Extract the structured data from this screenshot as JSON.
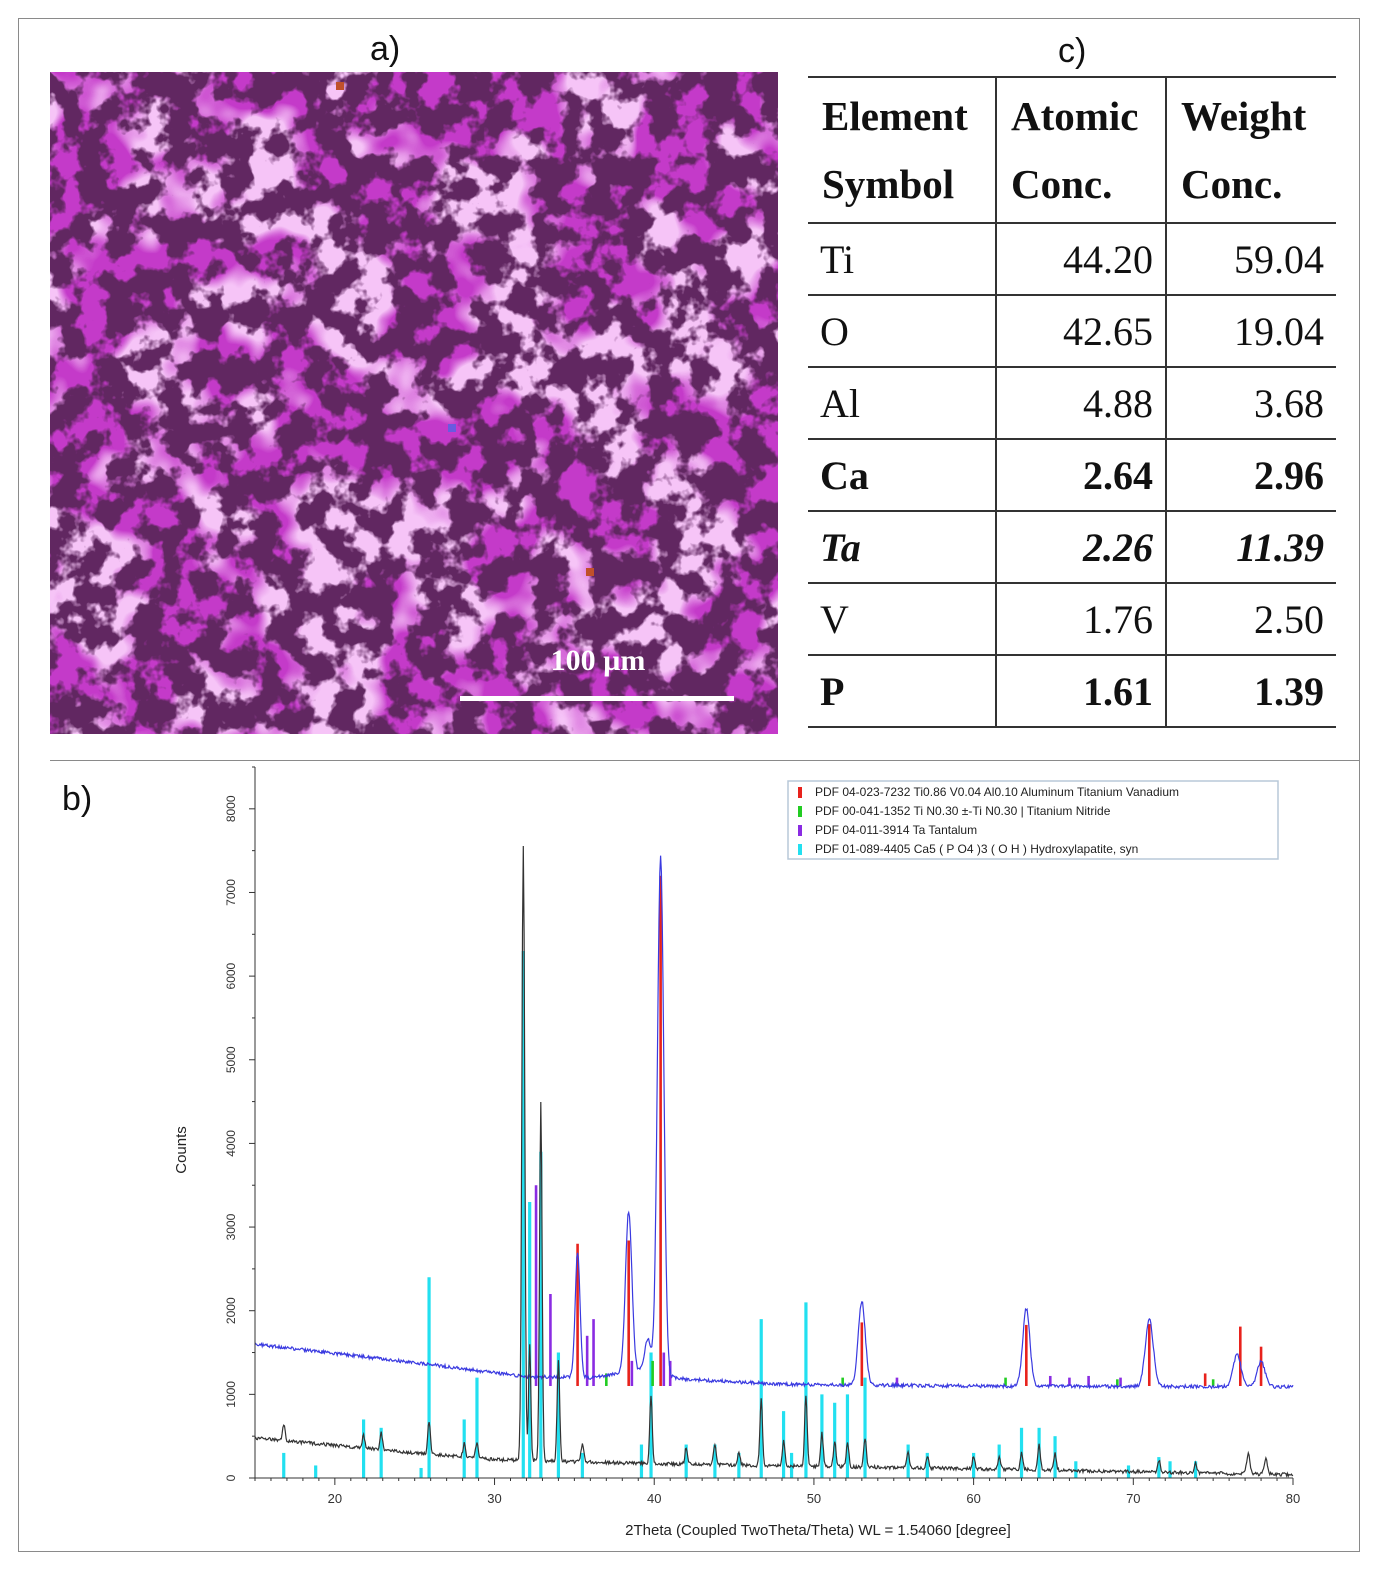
{
  "panels": {
    "a": "a)",
    "b": "b)",
    "c": "c)"
  },
  "micrograph": {
    "scale_label": "100 µm",
    "tint": "#c43ac9"
  },
  "table": {
    "headers": [
      [
        "Element",
        "Symbol"
      ],
      [
        "Atomic",
        "Conc."
      ],
      [
        "Weight",
        "Conc."
      ]
    ],
    "rows": [
      {
        "symbol": "Ti",
        "atomic": "44.20",
        "weight": "59.04",
        "style": "normal"
      },
      {
        "symbol": "O",
        "atomic": "42.65",
        "weight": "19.04",
        "style": "normal"
      },
      {
        "symbol": "Al",
        "atomic": "4.88",
        "weight": "3.68",
        "style": "normal"
      },
      {
        "symbol": "Ca",
        "atomic": "2.64",
        "weight": "2.96",
        "style": "bold"
      },
      {
        "symbol": "Ta",
        "atomic": "2.26",
        "weight": "11.39",
        "style": "bolditalic"
      },
      {
        "symbol": "V",
        "atomic": "1.76",
        "weight": "2.50",
        "style": "normal"
      },
      {
        "symbol": "P",
        "atomic": "1.61",
        "weight": "1.39",
        "style": "bold"
      }
    ]
  },
  "chart_data": {
    "type": "line",
    "xlabel": "2Theta (Coupled TwoTheta/Theta) WL = 1.54060  [degree]",
    "ylabel": "Counts",
    "xlim": [
      15,
      80
    ],
    "ylim": [
      0,
      8500
    ],
    "xticks": [
      20,
      30,
      40,
      50,
      60,
      70,
      80
    ],
    "yticks": [
      0,
      1000,
      2000,
      3000,
      4000,
      5000,
      6000,
      7000,
      8000
    ],
    "legend_position": "top-right",
    "legend": [
      {
        "label": "PDF 04-023-7232 Ti0.86 V0.04 Al0.10 Aluminum Titanium Vanadium",
        "color": "#e8221c"
      },
      {
        "label": "PDF 00-041-1352 Ti N0.30 ±-Ti N0.30 | Titanium Nitride",
        "color": "#22cc22"
      },
      {
        "label": "PDF 04-011-3914 Ta Tantalum",
        "color": "#8a2be2"
      },
      {
        "label": "PDF 01-089-4405 Ca5 ( P O4 )3 ( O H ) Hydroxylapatite, syn",
        "color": "#22e0f0"
      }
    ],
    "series": [
      {
        "color": "#3a3ae0",
        "baseline": [
          [
            15,
            1600
          ],
          [
            25,
            1380
          ],
          [
            32,
            1210
          ],
          [
            36,
            1200
          ],
          [
            39,
            1280
          ],
          [
            42,
            1180
          ],
          [
            48,
            1120
          ],
          [
            60,
            1100
          ],
          [
            80,
            1090
          ]
        ],
        "peaks": [
          [
            35.2,
            1500,
            0.15
          ],
          [
            38.4,
            1930,
            0.2
          ],
          [
            39.6,
            400,
            0.2
          ],
          [
            40.4,
            6200,
            0.2
          ],
          [
            53.0,
            1000,
            0.22
          ],
          [
            63.3,
            930,
            0.22
          ],
          [
            71.0,
            800,
            0.25
          ],
          [
            76.5,
            380,
            0.25
          ],
          [
            78.0,
            300,
            0.25
          ]
        ]
      },
      {
        "color": "#333333",
        "baseline": [
          [
            15,
            480
          ],
          [
            25,
            300
          ],
          [
            30,
            220
          ],
          [
            40,
            170
          ],
          [
            60,
            110
          ],
          [
            80,
            40
          ]
        ],
        "peaks": [
          [
            16.8,
            200,
            0.08
          ],
          [
            21.8,
            150,
            0.08
          ],
          [
            22.9,
            200,
            0.08
          ],
          [
            25.9,
            400,
            0.08
          ],
          [
            28.1,
            160,
            0.08
          ],
          [
            28.9,
            200,
            0.08
          ],
          [
            31.8,
            7350,
            0.09
          ],
          [
            32.2,
            1400,
            0.07
          ],
          [
            32.9,
            4300,
            0.08
          ],
          [
            34.0,
            1200,
            0.08
          ],
          [
            35.5,
            220,
            0.08
          ],
          [
            39.8,
            800,
            0.08
          ],
          [
            42.0,
            200,
            0.08
          ],
          [
            43.8,
            250,
            0.08
          ],
          [
            45.3,
            150,
            0.08
          ],
          [
            46.7,
            800,
            0.08
          ],
          [
            48.1,
            300,
            0.08
          ],
          [
            49.5,
            850,
            0.08
          ],
          [
            50.5,
            400,
            0.08
          ],
          [
            51.3,
            300,
            0.08
          ],
          [
            52.1,
            300,
            0.08
          ],
          [
            53.2,
            350,
            0.08
          ],
          [
            55.9,
            180,
            0.08
          ],
          [
            57.1,
            140,
            0.08
          ],
          [
            60.0,
            140,
            0.08
          ],
          [
            61.6,
            160,
            0.08
          ],
          [
            63.0,
            200,
            0.08
          ],
          [
            64.1,
            300,
            0.08
          ],
          [
            65.1,
            200,
            0.08
          ],
          [
            71.6,
            150,
            0.08
          ],
          [
            73.9,
            120,
            0.08
          ],
          [
            77.2,
            250,
            0.1
          ],
          [
            78.3,
            180,
            0.1
          ]
        ]
      }
    ],
    "reference_sticks": [
      {
        "color": "#22e0f0",
        "base": 0,
        "sticks": [
          [
            16.8,
            300
          ],
          [
            18.8,
            150
          ],
          [
            21.8,
            700
          ],
          [
            22.9,
            600
          ],
          [
            25.4,
            120
          ],
          [
            25.9,
            2400
          ],
          [
            28.1,
            700
          ],
          [
            28.9,
            1200
          ],
          [
            31.8,
            6300
          ],
          [
            32.2,
            3300
          ],
          [
            32.9,
            3900
          ],
          [
            34.0,
            1500
          ],
          [
            35.5,
            300
          ],
          [
            39.2,
            400
          ],
          [
            39.8,
            1500
          ],
          [
            42.0,
            400
          ],
          [
            43.8,
            400
          ],
          [
            45.3,
            300
          ],
          [
            46.7,
            1900
          ],
          [
            48.1,
            800
          ],
          [
            48.6,
            300
          ],
          [
            49.5,
            2100
          ],
          [
            50.5,
            1000
          ],
          [
            51.3,
            900
          ],
          [
            52.1,
            1000
          ],
          [
            53.2,
            1200
          ],
          [
            55.9,
            400
          ],
          [
            57.1,
            300
          ],
          [
            60.0,
            300
          ],
          [
            61.6,
            400
          ],
          [
            63.0,
            600
          ],
          [
            64.1,
            600
          ],
          [
            65.1,
            500
          ],
          [
            66.4,
            200
          ],
          [
            69.7,
            150
          ],
          [
            71.6,
            250
          ],
          [
            72.3,
            200
          ],
          [
            73.9,
            200
          ]
        ]
      },
      {
        "color": "#e8221c",
        "base": 1100,
        "sticks": [
          [
            35.2,
            1700
          ],
          [
            38.4,
            1740
          ],
          [
            40.4,
            6100
          ],
          [
            53.0,
            760
          ],
          [
            63.3,
            730
          ],
          [
            71.0,
            740
          ],
          [
            76.7,
            710
          ],
          [
            78.0,
            470
          ],
          [
            74.5,
            150
          ]
        ]
      },
      {
        "color": "#8a2be2",
        "base": 1100,
        "sticks": [
          [
            32.6,
            2400
          ],
          [
            33.5,
            1100
          ],
          [
            35.8,
            600
          ],
          [
            36.2,
            800
          ],
          [
            38.6,
            300
          ],
          [
            40.6,
            400
          ],
          [
            41.0,
            300
          ],
          [
            55.2,
            100
          ],
          [
            64.8,
            120
          ],
          [
            66.0,
            100
          ],
          [
            67.2,
            120
          ],
          [
            69.2,
            100
          ]
        ]
      },
      {
        "color": "#22cc22",
        "base": 1100,
        "sticks": [
          [
            37.0,
            150
          ],
          [
            39.9,
            300
          ],
          [
            51.8,
            100
          ],
          [
            62.0,
            100
          ],
          [
            69.0,
            80
          ],
          [
            75.0,
            80
          ]
        ]
      }
    ]
  }
}
